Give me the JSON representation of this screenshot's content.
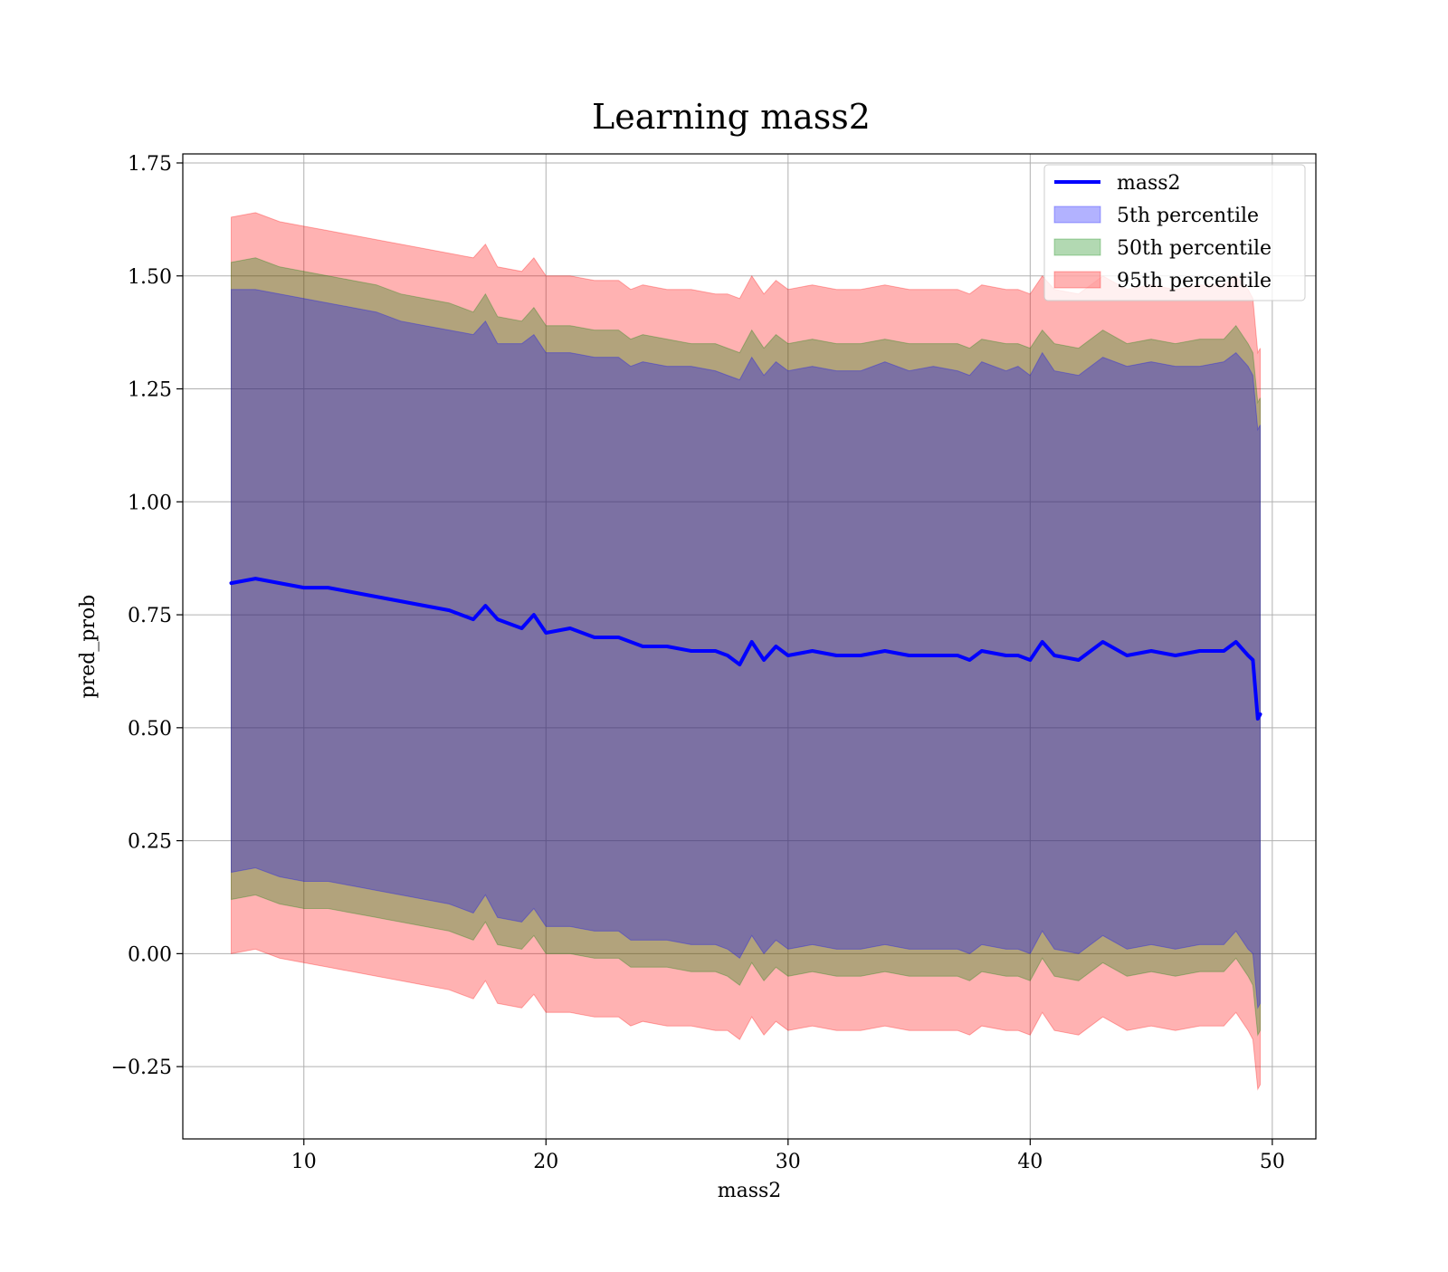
{
  "chart_data": {
    "type": "line",
    "title": "Learning mass2",
    "xlabel": "mass2",
    "ylabel": "pred_prob",
    "xlim": [
      5,
      51.8
    ],
    "ylim": [
      -0.41,
      1.77
    ],
    "grid": true,
    "legend_position": "top-right",
    "xticks": [
      10,
      20,
      30,
      40,
      50
    ],
    "xtick_labels": [
      "10",
      "20",
      "30",
      "40",
      "50"
    ],
    "yticks": [
      -0.25,
      0,
      0.25,
      0.5,
      0.75,
      1.0,
      1.25,
      1.5,
      1.75
    ],
    "ytick_labels": [
      "−0.25",
      "0.00",
      "0.25",
      "0.50",
      "0.75",
      "1.00",
      "1.25",
      "1.50",
      "1.75"
    ],
    "x": [
      7,
      8,
      9,
      10,
      11,
      12,
      13,
      14,
      15,
      16,
      17,
      17.5,
      18,
      19,
      19.5,
      20,
      21,
      22,
      23,
      23.5,
      24,
      25,
      26,
      27,
      27.5,
      28,
      28.5,
      29,
      29.5,
      30,
      31,
      32,
      33,
      34,
      35,
      36,
      37,
      37.5,
      38,
      39,
      39.5,
      40,
      40.5,
      41,
      42,
      43,
      44,
      45,
      46,
      47,
      48,
      48.5,
      49,
      49.2,
      49.4,
      49.5
    ],
    "series": [
      {
        "name": "mass2",
        "color": "#0000ff",
        "values": [
          0.82,
          0.83,
          0.82,
          0.81,
          0.81,
          0.8,
          0.79,
          0.78,
          0.77,
          0.76,
          0.74,
          0.77,
          0.74,
          0.72,
          0.75,
          0.71,
          0.72,
          0.7,
          0.7,
          0.69,
          0.68,
          0.68,
          0.67,
          0.67,
          0.66,
          0.64,
          0.69,
          0.65,
          0.68,
          0.66,
          0.67,
          0.66,
          0.66,
          0.67,
          0.66,
          0.66,
          0.66,
          0.65,
          0.67,
          0.66,
          0.66,
          0.65,
          0.69,
          0.66,
          0.65,
          0.69,
          0.66,
          0.67,
          0.66,
          0.67,
          0.67,
          0.69,
          0.66,
          0.65,
          0.52,
          0.53
        ]
      }
    ],
    "bands": [
      {
        "name": "5th percentile",
        "color": "#0000ff",
        "opacity": 0.3,
        "upper": [
          1.47,
          1.47,
          1.46,
          1.45,
          1.44,
          1.43,
          1.42,
          1.4,
          1.39,
          1.38,
          1.37,
          1.4,
          1.35,
          1.35,
          1.37,
          1.33,
          1.33,
          1.32,
          1.32,
          1.3,
          1.31,
          1.3,
          1.3,
          1.29,
          1.28,
          1.27,
          1.32,
          1.28,
          1.31,
          1.29,
          1.3,
          1.29,
          1.29,
          1.31,
          1.29,
          1.3,
          1.29,
          1.28,
          1.31,
          1.29,
          1.3,
          1.28,
          1.33,
          1.29,
          1.28,
          1.32,
          1.3,
          1.31,
          1.3,
          1.3,
          1.31,
          1.33,
          1.3,
          1.28,
          1.16,
          1.17
        ],
        "lower": [
          0.18,
          0.19,
          0.17,
          0.16,
          0.16,
          0.15,
          0.14,
          0.13,
          0.12,
          0.11,
          0.09,
          0.13,
          0.08,
          0.07,
          0.1,
          0.06,
          0.06,
          0.05,
          0.05,
          0.03,
          0.03,
          0.03,
          0.02,
          0.02,
          0.01,
          -0.01,
          0.04,
          0.0,
          0.03,
          0.01,
          0.02,
          0.01,
          0.01,
          0.02,
          0.01,
          0.01,
          0.01,
          -0.0,
          0.02,
          0.01,
          0.01,
          0.0,
          0.05,
          0.01,
          0.0,
          0.04,
          0.01,
          0.02,
          0.01,
          0.02,
          0.02,
          0.05,
          0.01,
          0.0,
          -0.12,
          -0.11
        ]
      },
      {
        "name": "50th percentile",
        "color": "#008000",
        "opacity": 0.3,
        "upper": [
          1.53,
          1.54,
          1.52,
          1.51,
          1.5,
          1.49,
          1.48,
          1.46,
          1.45,
          1.44,
          1.42,
          1.46,
          1.41,
          1.4,
          1.43,
          1.39,
          1.39,
          1.38,
          1.38,
          1.36,
          1.37,
          1.36,
          1.35,
          1.35,
          1.34,
          1.33,
          1.38,
          1.34,
          1.37,
          1.35,
          1.36,
          1.35,
          1.35,
          1.36,
          1.35,
          1.35,
          1.35,
          1.34,
          1.36,
          1.35,
          1.35,
          1.34,
          1.38,
          1.35,
          1.34,
          1.38,
          1.35,
          1.36,
          1.35,
          1.36,
          1.36,
          1.39,
          1.35,
          1.33,
          1.22,
          1.23
        ],
        "lower": [
          0.12,
          0.13,
          0.11,
          0.1,
          0.1,
          0.09,
          0.08,
          0.07,
          0.06,
          0.05,
          0.03,
          0.07,
          0.02,
          0.01,
          0.04,
          -0.0,
          -0.0,
          -0.01,
          -0.01,
          -0.03,
          -0.03,
          -0.03,
          -0.04,
          -0.04,
          -0.05,
          -0.07,
          -0.02,
          -0.06,
          -0.03,
          -0.05,
          -0.04,
          -0.05,
          -0.05,
          -0.04,
          -0.05,
          -0.05,
          -0.05,
          -0.06,
          -0.04,
          -0.05,
          -0.05,
          -0.06,
          -0.01,
          -0.05,
          -0.06,
          -0.02,
          -0.05,
          -0.04,
          -0.05,
          -0.04,
          -0.04,
          -0.01,
          -0.05,
          -0.07,
          -0.18,
          -0.17
        ]
      },
      {
        "name": "95th percentile",
        "color": "#ff0000",
        "opacity": 0.3,
        "upper": [
          1.63,
          1.64,
          1.62,
          1.61,
          1.6,
          1.59,
          1.58,
          1.57,
          1.56,
          1.55,
          1.54,
          1.57,
          1.52,
          1.51,
          1.54,
          1.5,
          1.5,
          1.49,
          1.49,
          1.47,
          1.48,
          1.47,
          1.47,
          1.46,
          1.46,
          1.45,
          1.5,
          1.46,
          1.49,
          1.47,
          1.48,
          1.47,
          1.47,
          1.48,
          1.47,
          1.47,
          1.47,
          1.46,
          1.48,
          1.47,
          1.47,
          1.46,
          1.5,
          1.47,
          1.46,
          1.5,
          1.47,
          1.48,
          1.47,
          1.48,
          1.48,
          1.5,
          1.47,
          1.45,
          1.33,
          1.34
        ],
        "lower": [
          0.0,
          0.01,
          -0.01,
          -0.02,
          -0.03,
          -0.04,
          -0.05,
          -0.06,
          -0.07,
          -0.08,
          -0.1,
          -0.06,
          -0.11,
          -0.12,
          -0.09,
          -0.13,
          -0.13,
          -0.14,
          -0.14,
          -0.16,
          -0.15,
          -0.16,
          -0.16,
          -0.17,
          -0.17,
          -0.19,
          -0.14,
          -0.18,
          -0.15,
          -0.17,
          -0.16,
          -0.17,
          -0.17,
          -0.16,
          -0.17,
          -0.17,
          -0.17,
          -0.18,
          -0.16,
          -0.17,
          -0.17,
          -0.18,
          -0.13,
          -0.17,
          -0.18,
          -0.14,
          -0.17,
          -0.16,
          -0.17,
          -0.16,
          -0.16,
          -0.13,
          -0.17,
          -0.19,
          -0.3,
          -0.29
        ]
      }
    ]
  }
}
